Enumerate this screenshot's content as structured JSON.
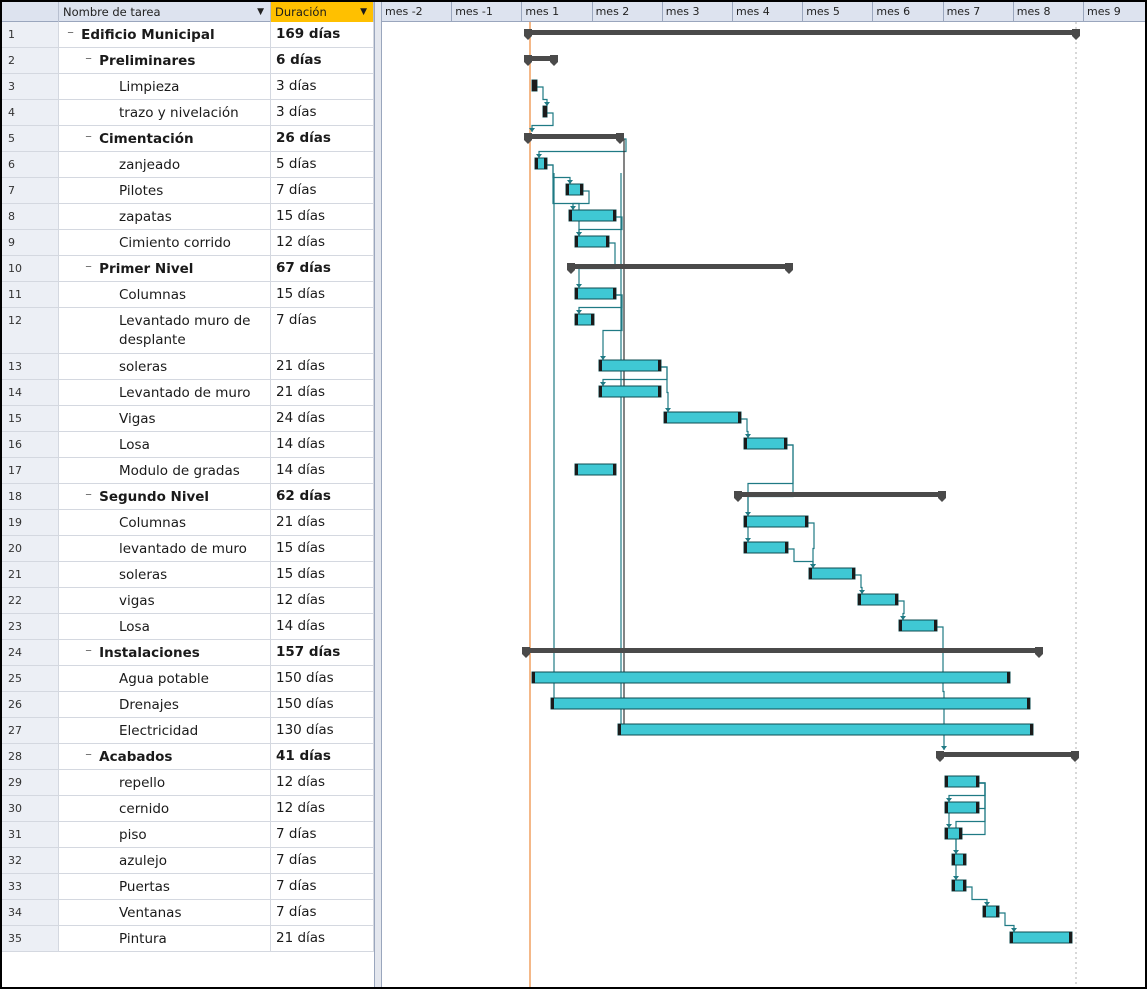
{
  "columns": {
    "name": "Nombre de tarea",
    "duration": "Duración"
  },
  "timeline": [
    "mes -2",
    "mes -1",
    "mes 1",
    "mes 2",
    "mes 3",
    "mes 4",
    "mes 5",
    "mes 6",
    "mes 7",
    "mes 8",
    "mes 9"
  ],
  "colors": {
    "task_bar": "#3fc8d4",
    "summary_bar": "#4a4a4a",
    "link_line": "#1f7a84",
    "today_line": "#f0a060"
  },
  "tasks": [
    {
      "id": "1",
      "name": "Edificio Municipal",
      "duration": "169 días",
      "summary": true,
      "level": 0
    },
    {
      "id": "2",
      "name": "Preliminares",
      "duration": "6 días",
      "summary": true,
      "level": 1
    },
    {
      "id": "3",
      "name": "Limpieza",
      "duration": "3 días",
      "summary": false,
      "level": 2
    },
    {
      "id": "4",
      "name": "trazo y nivelación",
      "duration": "3 días",
      "summary": false,
      "level": 2
    },
    {
      "id": "5",
      "name": "Cimentación",
      "duration": "26 días",
      "summary": true,
      "level": 1
    },
    {
      "id": "6",
      "name": "zanjeado",
      "duration": "5 días",
      "summary": false,
      "level": 2
    },
    {
      "id": "7",
      "name": "Pilotes",
      "duration": "7 días",
      "summary": false,
      "level": 2
    },
    {
      "id": "8",
      "name": "zapatas",
      "duration": "15 días",
      "summary": false,
      "level": 2
    },
    {
      "id": "9",
      "name": "Cimiento corrido",
      "duration": "12 días",
      "summary": false,
      "level": 2
    },
    {
      "id": "10",
      "name": "Primer Nivel",
      "duration": "67 días",
      "summary": true,
      "level": 1
    },
    {
      "id": "11",
      "name": "Columnas",
      "duration": "15 días",
      "summary": false,
      "level": 2
    },
    {
      "id": "12",
      "name": "Levantado muro de desplante",
      "duration": "7 días",
      "summary": false,
      "level": 2
    },
    {
      "id": "13",
      "name": "soleras",
      "duration": "21 días",
      "summary": false,
      "level": 2
    },
    {
      "id": "14",
      "name": "Levantado de muro",
      "duration": "21 días",
      "summary": false,
      "level": 2
    },
    {
      "id": "15",
      "name": "Vigas",
      "duration": "24 días",
      "summary": false,
      "level": 2
    },
    {
      "id": "16",
      "name": "Losa",
      "duration": "14 días",
      "summary": false,
      "level": 2
    },
    {
      "id": "17",
      "name": "Modulo de gradas",
      "duration": "14 días",
      "summary": false,
      "level": 2
    },
    {
      "id": "18",
      "name": "Segundo Nivel",
      "duration": "62 días",
      "summary": true,
      "level": 1
    },
    {
      "id": "19",
      "name": "Columnas",
      "duration": "21 días",
      "summary": false,
      "level": 2
    },
    {
      "id": "20",
      "name": "levantado de muro",
      "duration": "15 días",
      "summary": false,
      "level": 2
    },
    {
      "id": "21",
      "name": "soleras",
      "duration": "15 días",
      "summary": false,
      "level": 2
    },
    {
      "id": "22",
      "name": "vigas",
      "duration": "12 días",
      "summary": false,
      "level": 2
    },
    {
      "id": "23",
      "name": "Losa",
      "duration": "14 días",
      "summary": false,
      "level": 2
    },
    {
      "id": "24",
      "name": "Instalaciones",
      "duration": "157 días",
      "summary": true,
      "level": 1
    },
    {
      "id": "25",
      "name": "Agua potable",
      "duration": "150 días",
      "summary": false,
      "level": 2
    },
    {
      "id": "26",
      "name": "Drenajes",
      "duration": "150 días",
      "summary": false,
      "level": 2
    },
    {
      "id": "27",
      "name": "Electricidad",
      "duration": "130 días",
      "summary": false,
      "level": 2
    },
    {
      "id": "28",
      "name": "Acabados",
      "duration": "41 días",
      "summary": true,
      "level": 1
    },
    {
      "id": "29",
      "name": "repello",
      "duration": "12 días",
      "summary": false,
      "level": 2
    },
    {
      "id": "30",
      "name": "cernido",
      "duration": "12 días",
      "summary": false,
      "level": 2
    },
    {
      "id": "31",
      "name": "piso",
      "duration": "7 días",
      "summary": false,
      "level": 2
    },
    {
      "id": "32",
      "name": "azulejo",
      "duration": "7 días",
      "summary": false,
      "level": 2
    },
    {
      "id": "33",
      "name": "Puertas",
      "duration": "7 días",
      "summary": false,
      "level": 2
    },
    {
      "id": "34",
      "name": "Ventanas",
      "duration": "7 días",
      "summary": false,
      "level": 2
    },
    {
      "id": "35",
      "name": "Pintura",
      "duration": "21 días",
      "summary": false,
      "level": 2
    }
  ]
}
